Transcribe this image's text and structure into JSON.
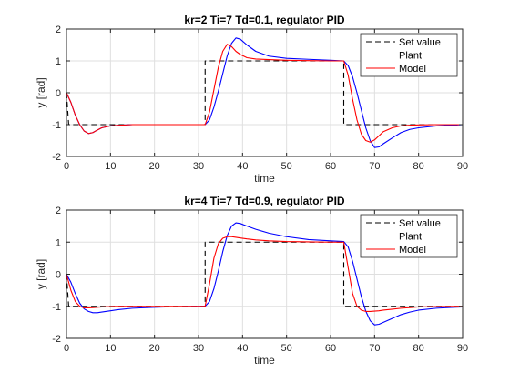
{
  "chart_data": [
    {
      "type": "line",
      "title": "kr=2 Ti=7 Td=0.1, regulator PID",
      "xlabel": "time",
      "ylabel": "y [rad]",
      "xlim": [
        0,
        90
      ],
      "ylim": [
        -2,
        2
      ],
      "xticks": [
        0,
        10,
        20,
        30,
        40,
        50,
        60,
        70,
        80,
        90
      ],
      "yticks": [
        -2,
        -1,
        0,
        1,
        2
      ],
      "grid": true,
      "legend_position": "top-right",
      "series": [
        {
          "name": "Set value",
          "color": "#000000",
          "style": "dashed",
          "x": [
            0,
            0.5,
            31.5,
            31.5,
            63,
            63,
            90
          ],
          "y": [
            0,
            -1,
            -1,
            1,
            1,
            -1,
            -1
          ]
        },
        {
          "name": "Plant",
          "color": "#0000ff",
          "style": "solid",
          "x": [
            0,
            1,
            2,
            3,
            4,
            5,
            6,
            7,
            8,
            10,
            12,
            15,
            20,
            25,
            30,
            31.5,
            32.5,
            33.5,
            34.5,
            35.5,
            36.5,
            37.5,
            38.5,
            39.5,
            41,
            43,
            46,
            50,
            55,
            60,
            63,
            64,
            65,
            66,
            67,
            68,
            69,
            70,
            71,
            72,
            74,
            76,
            78,
            80,
            84,
            88,
            90
          ],
          "y": [
            0,
            -0.3,
            -0.7,
            -1.0,
            -1.2,
            -1.28,
            -1.25,
            -1.17,
            -1.1,
            -1.04,
            -1.02,
            -1.0,
            -1.0,
            -1.0,
            -1.0,
            -1.0,
            -0.85,
            -0.45,
            0.05,
            0.6,
            1.15,
            1.55,
            1.72,
            1.68,
            1.5,
            1.3,
            1.15,
            1.08,
            1.05,
            1.02,
            1.0,
            0.85,
            0.5,
            0.0,
            -0.55,
            -1.1,
            -1.5,
            -1.72,
            -1.7,
            -1.6,
            -1.42,
            -1.25,
            -1.15,
            -1.1,
            -1.04,
            -1.02,
            -1.0
          ]
        },
        {
          "name": "Model",
          "color": "#ff0000",
          "style": "solid",
          "x": [
            0,
            1,
            2,
            3,
            4,
            5,
            6,
            7,
            8,
            10,
            12,
            15,
            20,
            25,
            30,
            31.5,
            32.5,
            33.5,
            34.5,
            35.5,
            36.5,
            37.5,
            38.5,
            39.5,
            41,
            43,
            46,
            50,
            55,
            60,
            63,
            64,
            65,
            66,
            67,
            68,
            69,
            70,
            71,
            72,
            74,
            76,
            78,
            80,
            84,
            88,
            90
          ],
          "y": [
            0,
            -0.3,
            -0.7,
            -1.0,
            -1.2,
            -1.28,
            -1.25,
            -1.17,
            -1.1,
            -1.04,
            -1.02,
            -1.0,
            -1.0,
            -1.0,
            -1.0,
            -1.0,
            -0.6,
            0.1,
            0.8,
            1.3,
            1.52,
            1.45,
            1.3,
            1.2,
            1.1,
            1.06,
            1.04,
            1.02,
            1.01,
            1.0,
            1.0,
            0.55,
            -0.2,
            -0.85,
            -1.3,
            -1.5,
            -1.55,
            -1.48,
            -1.35,
            -1.22,
            -1.1,
            -1.04,
            -1.02,
            -1.01,
            -1.0,
            -1.0,
            -1.0
          ]
        }
      ]
    },
    {
      "type": "line",
      "title": "kr=4 Ti=7 Td=0.9, regulator PID",
      "xlabel": "time",
      "ylabel": "y [rad]",
      "xlim": [
        0,
        90
      ],
      "ylim": [
        -2,
        2
      ],
      "xticks": [
        0,
        10,
        20,
        30,
        40,
        50,
        60,
        70,
        80,
        90
      ],
      "yticks": [
        -2,
        -1,
        0,
        1,
        2
      ],
      "grid": true,
      "legend_position": "top-right",
      "series": [
        {
          "name": "Set value",
          "color": "#000000",
          "style": "dashed",
          "x": [
            0,
            0.5,
            31.5,
            31.5,
            63,
            63,
            90
          ],
          "y": [
            0,
            -1,
            -1,
            1,
            1,
            -1,
            -1
          ]
        },
        {
          "name": "Plant",
          "color": "#0000ff",
          "style": "solid",
          "x": [
            0,
            1,
            2,
            3,
            4,
            5,
            6,
            7,
            8,
            10,
            12,
            15,
            20,
            25,
            30,
            31.5,
            32.5,
            33.5,
            34.5,
            35.5,
            36.5,
            37.5,
            38.5,
            39.5,
            41,
            43,
            46,
            50,
            55,
            60,
            63,
            64,
            65,
            66,
            67,
            68,
            69,
            70,
            71,
            72,
            74,
            76,
            78,
            80,
            84,
            88,
            90
          ],
          "y": [
            0,
            -0.25,
            -0.6,
            -0.9,
            -1.08,
            -1.16,
            -1.2,
            -1.2,
            -1.18,
            -1.14,
            -1.1,
            -1.06,
            -1.03,
            -1.01,
            -1.0,
            -1.0,
            -0.85,
            -0.45,
            0.1,
            0.7,
            1.2,
            1.5,
            1.6,
            1.58,
            1.5,
            1.4,
            1.28,
            1.17,
            1.08,
            1.04,
            1.02,
            0.85,
            0.4,
            -0.15,
            -0.7,
            -1.15,
            -1.45,
            -1.58,
            -1.56,
            -1.5,
            -1.38,
            -1.26,
            -1.18,
            -1.12,
            -1.06,
            -1.03,
            -1.02
          ]
        },
        {
          "name": "Model",
          "color": "#ff0000",
          "style": "solid",
          "x": [
            0,
            1,
            2,
            3,
            4,
            5,
            6,
            7,
            8,
            10,
            12,
            15,
            20,
            25,
            30,
            31.5,
            32.5,
            33.5,
            34.5,
            35.5,
            36.5,
            37.5,
            38.5,
            39.5,
            41,
            43,
            46,
            50,
            55,
            60,
            63,
            64,
            65,
            66,
            67,
            68,
            69,
            70,
            71,
            72,
            74,
            76,
            78,
            80,
            84,
            88,
            90
          ],
          "y": [
            0,
            -0.5,
            -0.85,
            -1.0,
            -1.05,
            -1.05,
            -1.04,
            -1.03,
            -1.02,
            -1.01,
            -1.0,
            -1.0,
            -1.0,
            -1.0,
            -1.0,
            -1.0,
            -0.3,
            0.5,
            0.95,
            1.12,
            1.17,
            1.17,
            1.15,
            1.13,
            1.1,
            1.07,
            1.04,
            1.02,
            1.01,
            1.0,
            1.0,
            0.2,
            -0.6,
            -1.0,
            -1.12,
            -1.16,
            -1.16,
            -1.15,
            -1.14,
            -1.12,
            -1.09,
            -1.06,
            -1.04,
            -1.02,
            -1.01,
            -1.0,
            -1.0
          ]
        }
      ]
    }
  ]
}
